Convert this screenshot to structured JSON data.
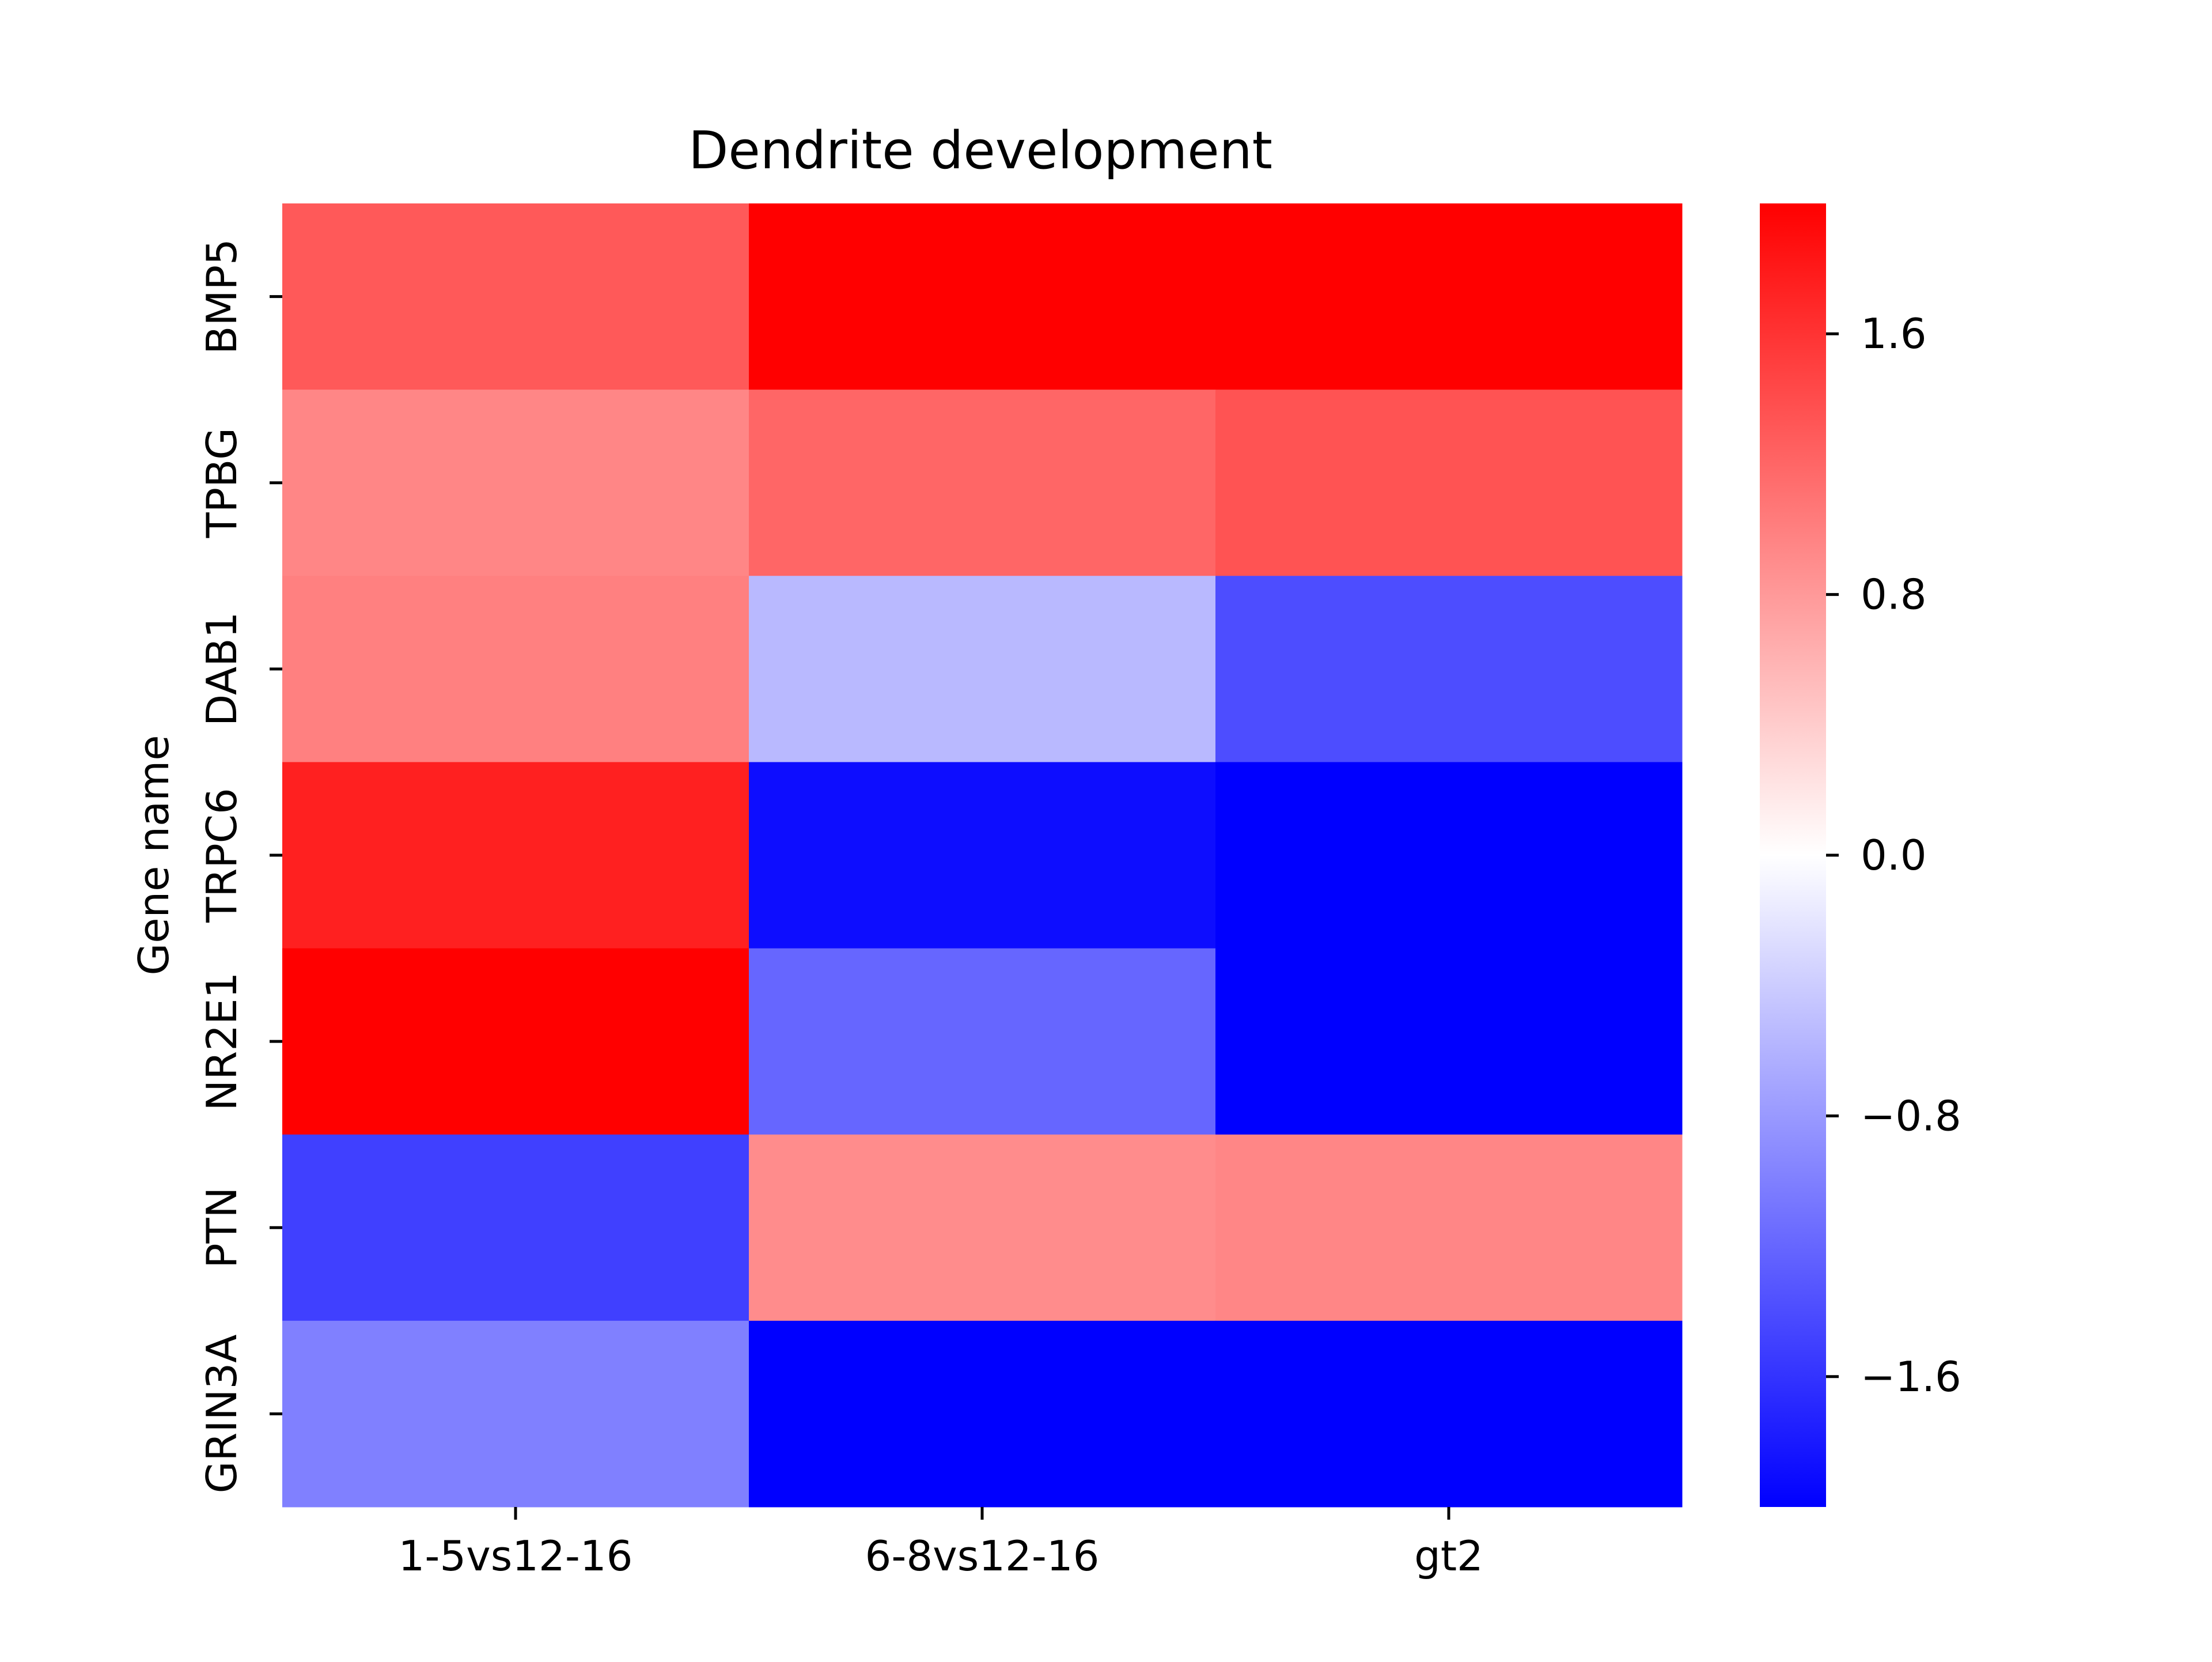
{
  "chart_data": {
    "type": "heatmap",
    "title": "Dendrite development",
    "xlabel": "",
    "ylabel": "Gene name",
    "x_categories": [
      "1-5vs12-16",
      "6-8vs12-16",
      "gt2"
    ],
    "y_categories": [
      "BMP5",
      "TPBG",
      "DAB1",
      "TRPC6",
      "NR2E1",
      "PTN",
      "GRIN3A"
    ],
    "values": [
      [
        1.3,
        2.0,
        2.0
      ],
      [
        0.95,
        1.2,
        1.35
      ],
      [
        1.0,
        -0.55,
        -1.4
      ],
      [
        1.75,
        -1.9,
        -2.0
      ],
      [
        2.0,
        -1.2,
        -2.0
      ],
      [
        -1.5,
        0.9,
        0.95
      ],
      [
        -1.0,
        -2.0,
        -2.0
      ]
    ],
    "colormap": "bwr",
    "colors": {
      "low": "#0000ff",
      "mid": "#ffffff",
      "high": "#ff0000"
    },
    "vmin": -2.0,
    "vmax": 2.0,
    "colorbar_ticks": [
      1.6,
      0.8,
      0.0,
      -0.8,
      -1.6
    ],
    "colorbar_tick_labels": [
      "1.6",
      "0.8",
      "0.0",
      "−0.8",
      "−1.6"
    ]
  }
}
